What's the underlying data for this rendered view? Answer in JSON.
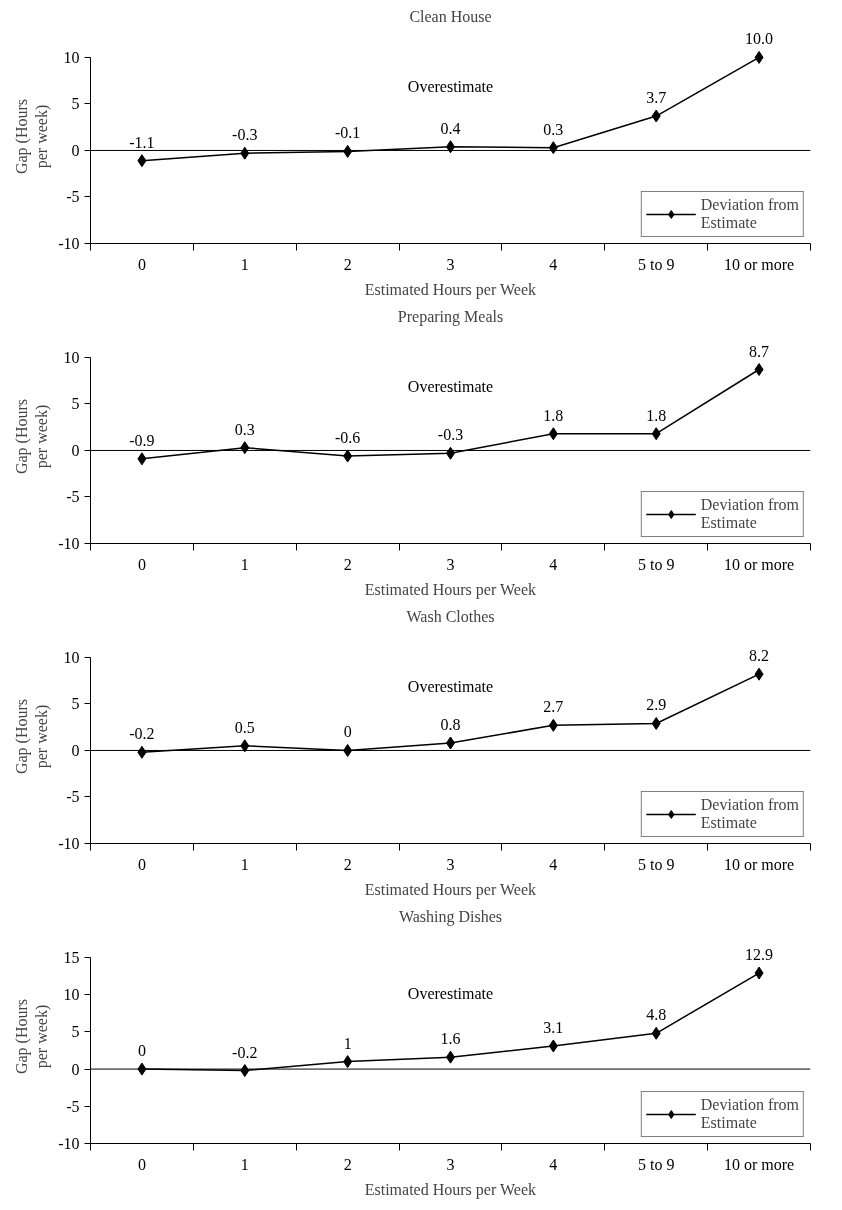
{
  "chart_data": [
    {
      "type": "line",
      "title": "Clean House",
      "xlabel": "Estimated Hours per Week",
      "ylabel": "Gap (Hours per week)",
      "categories": [
        "0",
        "1",
        "2",
        "3",
        "4",
        "5 to 9",
        "10 or more"
      ],
      "series": [
        {
          "name": "Deviation from Estimate",
          "color": "#000000",
          "values": [
            -1.1,
            -0.3,
            -0.1,
            0.4,
            0.3,
            3.7,
            10.0
          ]
        }
      ],
      "value_labels": [
        "-1.1",
        "-0.3",
        "-0.1",
        "0.4",
        "0.3",
        "3.7",
        "10.0"
      ],
      "ylim": [
        -10,
        10
      ],
      "yticks": [
        -10,
        -5,
        0,
        5,
        10
      ],
      "annotations": [
        "Overestimate"
      ],
      "ref_lines": [
        {
          "axis": "y",
          "value": 0,
          "color": "#000000"
        }
      ],
      "legend": "bottom right",
      "marker": "diamond",
      "grid": false
    },
    {
      "type": "line",
      "title": "Preparing Meals",
      "xlabel": "Estimated Hours per Week",
      "ylabel": "Gap (Hours per week)",
      "categories": [
        "0",
        "1",
        "2",
        "3",
        "4",
        "5 to 9",
        "10 or more"
      ],
      "series": [
        {
          "name": "Deviation from Estimate",
          "color": "#000000",
          "values": [
            -0.9,
            0.3,
            -0.6,
            -0.3,
            1.8,
            1.8,
            8.7
          ]
        }
      ],
      "data_labels": true,
      "ylim": [
        -10,
        10
      ],
      "yticks": [
        -10,
        -5,
        0,
        5,
        10
      ],
      "annotations": [
        "Overestimate"
      ],
      "ref_lines": [
        {
          "axis": "y",
          "value": 0,
          "color": "#000000"
        }
      ],
      "legend": "bottom right",
      "marker": "diamond",
      "grid": false
    },
    {
      "type": "line",
      "title": "Wash Clothes",
      "xlabel": "Estimated Hours per Week",
      "ylabel": "Gap (Hours per week)",
      "categories": [
        "0",
        "1",
        "2",
        "3",
        "4",
        "5 to 9",
        "10 or more"
      ],
      "series": [
        {
          "name": "Deviation from Estimate",
          "color": "#000000",
          "values": [
            -0.2,
            0.5,
            0,
            0.8,
            2.7,
            2.9,
            8.2
          ]
        }
      ],
      "data_labels": true,
      "ylim": [
        -10,
        10
      ],
      "yticks": [
        -10,
        -5,
        0,
        5,
        10
      ],
      "annotations": [
        "Overestimate"
      ],
      "ref_lines": [
        {
          "axis": "y",
          "value": 0,
          "color": "#000000"
        }
      ],
      "legend": "bottom right",
      "marker": "diamond",
      "grid": false
    },
    {
      "type": "line",
      "title": "Washing Dishes",
      "xlabel": "Estimated Hours per Week",
      "ylabel": "Gap (Hours per week)",
      "categories": [
        "0",
        "1",
        "2",
        "3",
        "4",
        "5 to 9",
        "10 or more"
      ],
      "series": [
        {
          "name": "Deviation from Estimate",
          "color": "#000000",
          "values": [
            0,
            -0.2,
            1,
            1.6,
            3.1,
            4.8,
            12.9
          ]
        }
      ],
      "data_labels": true,
      "ylim": [
        -10,
        15
      ],
      "yticks": [
        -10,
        -5,
        0,
        5,
        10,
        15
      ],
      "annotations": [
        "Overestimate"
      ],
      "ref_lines": [
        {
          "axis": "y",
          "value": 0,
          "color": "#000000"
        }
      ],
      "legend": "bottom right",
      "marker": "diamond",
      "grid": false
    }
  ]
}
